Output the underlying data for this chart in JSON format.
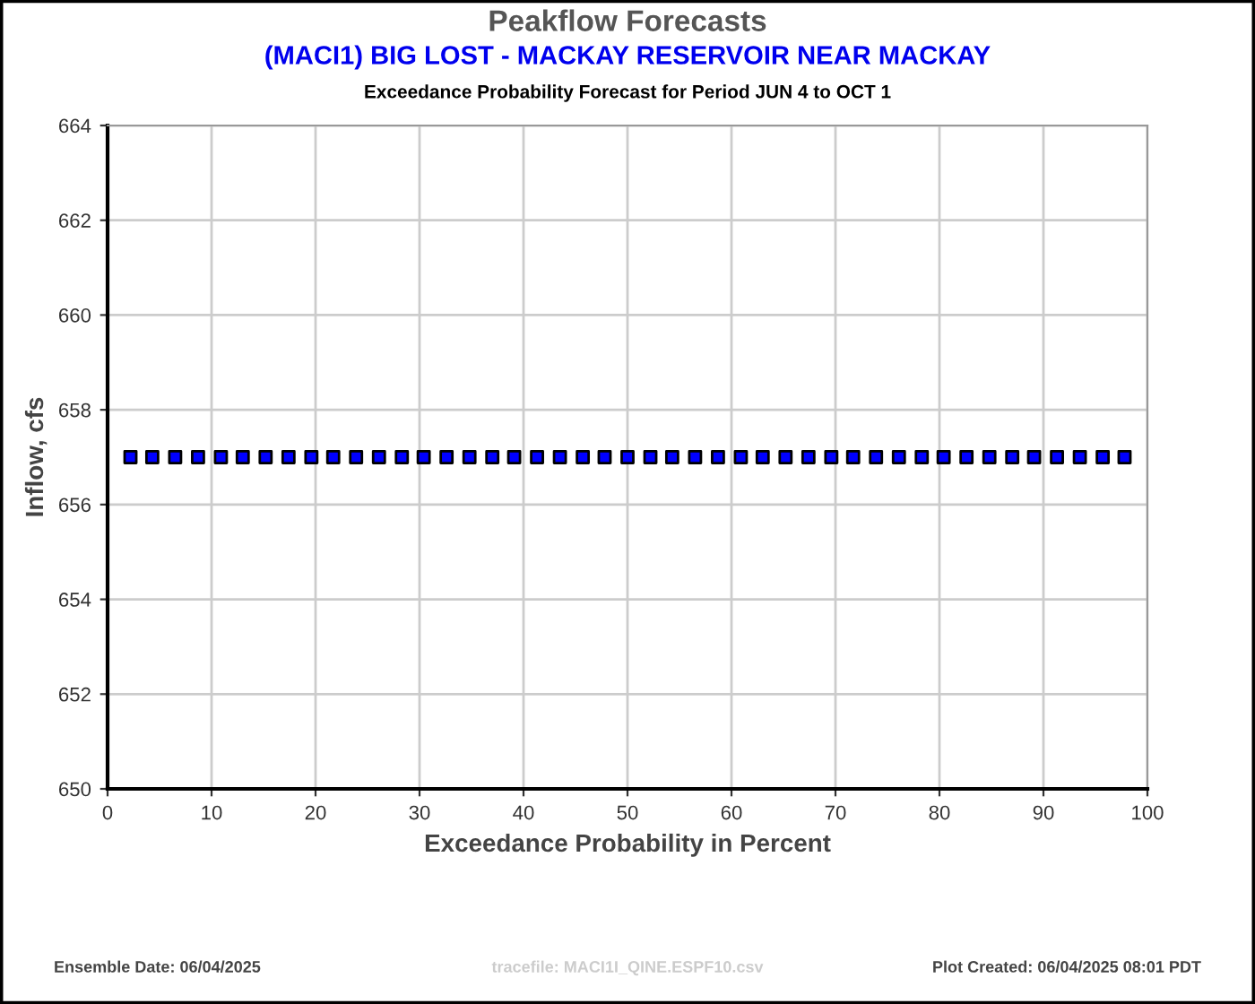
{
  "chart_data": {
    "type": "scatter",
    "title": "Peakflow Forecasts",
    "subtitle": "(MACI1) BIG LOST - MACKAY RESERVOIR NEAR MACKAY",
    "xlabel": "Exceedance Probability in Percent",
    "ylabel": "Inflow, cfs",
    "annotations": [
      "Exceedance Probability Forecast for Period JUN 4 to OCT 1",
      "Ensemble Date: 06/04/2025",
      "tracefile: MACI1I_QINE.ESPF10.csv",
      "Plot Created: 06/04/2025 08:01 PDT"
    ],
    "x": [
      2.2,
      4.3,
      6.5,
      8.7,
      10.9,
      13.0,
      15.2,
      17.4,
      19.6,
      21.7,
      23.9,
      26.1,
      28.3,
      30.4,
      32.6,
      34.8,
      37.0,
      39.1,
      41.3,
      43.5,
      45.7,
      47.8,
      50.0,
      52.2,
      54.3,
      56.5,
      58.7,
      60.9,
      63.0,
      65.2,
      67.4,
      69.6,
      71.7,
      73.9,
      76.1,
      78.3,
      80.4,
      82.6,
      84.8,
      87.0,
      89.1,
      91.3,
      93.5,
      95.7,
      97.8
    ],
    "series": [
      {
        "color": "#0000ff",
        "values": [
          657,
          657,
          657,
          657,
          657,
          657,
          657,
          657,
          657,
          657,
          657,
          657,
          657,
          657,
          657,
          657,
          657,
          657,
          657,
          657,
          657,
          657,
          657,
          657,
          657,
          657,
          657,
          657,
          657,
          657,
          657,
          657,
          657,
          657,
          657,
          657,
          657,
          657,
          657,
          657,
          657,
          657,
          657,
          657,
          657
        ]
      }
    ],
    "marker": "square",
    "xlim": [
      0,
      100
    ],
    "xticks": [
      0,
      10,
      20,
      30,
      40,
      50,
      60,
      70,
      80,
      90,
      100
    ],
    "ylim": [
      650,
      664
    ],
    "yticks": [
      650,
      652,
      654,
      656,
      658,
      660,
      662,
      664
    ],
    "grid": true,
    "legend": false
  }
}
